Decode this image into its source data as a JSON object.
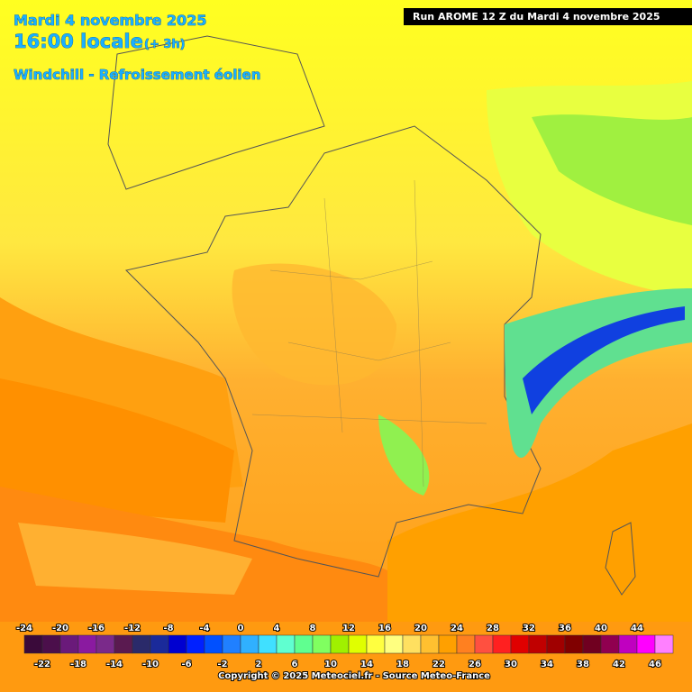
{
  "header": {
    "date": "Mardi 4 novembre 2025",
    "time": "16:00 locale",
    "offset": "(+ 3h)",
    "field": "Windchill - Refroissement éolien",
    "run": "Run AROME 12 Z du Mardi 4 novembre 2025"
  },
  "legend": {
    "values": [
      -24,
      -22,
      -20,
      -18,
      -16,
      -14,
      -12,
      -10,
      -8,
      -6,
      -4,
      -2,
      0,
      2,
      4,
      6,
      8,
      10,
      12,
      14,
      16,
      18,
      20,
      22,
      24,
      26,
      28,
      30,
      32,
      34,
      36,
      38,
      40,
      42,
      44,
      46
    ],
    "colors": [
      "#3a0a3a",
      "#4b0f4b",
      "#6a1a7a",
      "#8a1aa0",
      "#7a2a8a",
      "#5a1a50",
      "#2a2a6a",
      "#1a2a9a",
      "#0000d0",
      "#0020ff",
      "#0050ff",
      "#2080ff",
      "#30b0ff",
      "#40e0ff",
      "#60ffd0",
      "#60ff90",
      "#80ff60",
      "#a0f000",
      "#e0ff00",
      "#ffff40",
      "#ffff80",
      "#ffe060",
      "#ffc030",
      "#ffa000",
      "#ff8020",
      "#ff5040",
      "#ff2020",
      "#e00000",
      "#c00000",
      "#a00000",
      "#800000",
      "#700020",
      "#900050",
      "#c000c0",
      "#ff00ff",
      "#ff80ff"
    ]
  },
  "footer": {
    "copyright": "Copyright © 2025 Meteociel.fr - Source Meteo-France"
  }
}
